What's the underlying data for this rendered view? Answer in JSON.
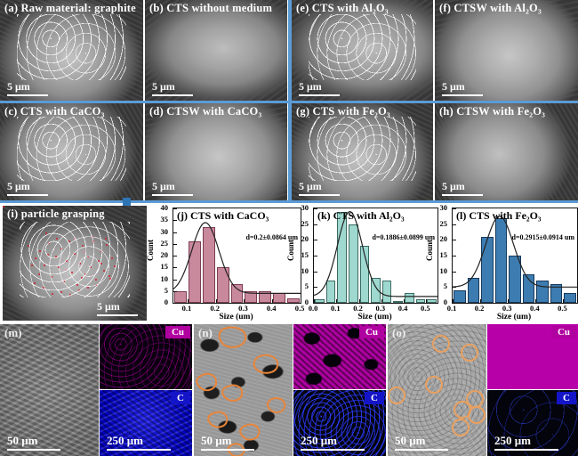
{
  "sem_panels": [
    {
      "label": "(a) Raw material: graphite",
      "scale_bar": "5 μm"
    },
    {
      "label": "(b) CTS without medium",
      "scale_bar": "5 μm"
    },
    {
      "label": "(e) CTS with Al₂O₃",
      "scale_bar": "5 μm"
    },
    {
      "label": "(f) CTSW with Al₂O₃",
      "scale_bar": "5 μm"
    },
    {
      "label": "(c) CTS with CaCO₃",
      "scale_bar": "5 μm"
    },
    {
      "label": "(d) CTSW with CaCO₃",
      "scale_bar": "5 μm"
    },
    {
      "label": "(g) CTS with Fe₂O₃",
      "scale_bar": "5 μm"
    },
    {
      "label": "(h) CTSW with Fe₂O₃",
      "scale_bar": "5 μm"
    }
  ],
  "grasping_panel": {
    "label": "(i) particle grasping",
    "scale_bar": "5 μm"
  },
  "chart_data": [
    {
      "type": "bar",
      "title": "(j) CTS with CaCO₃",
      "annotation": "d=0.2±0.0864 um",
      "xlabel": "Size (um)",
      "ylabel": "Count",
      "xlim": [
        0.05,
        0.5
      ],
      "ylim": [
        0,
        40
      ],
      "ytick_step": 5,
      "xticks": [
        0.1,
        0.2,
        0.3,
        0.4,
        0.5
      ],
      "bin_start": 0.05,
      "bin_width": 0.05,
      "values": [
        5,
        26,
        32,
        15,
        8,
        5,
        5,
        4,
        2
      ],
      "bar_color": "#c9899c",
      "bar_edge": "#7c3c52",
      "fit": {
        "mu": 0.163,
        "sigma": 0.048,
        "peak": 30,
        "baseline": 4
      }
    },
    {
      "type": "bar",
      "title": "(k) CTS with Al₂O₃",
      "annotation": "d=0.1886±0.0899 um",
      "xlabel": "Size (um)",
      "ylabel": "Count",
      "xlim": [
        0.0,
        0.55
      ],
      "ylim": [
        0,
        30
      ],
      "ytick_step": 5,
      "xticks": [
        0.0,
        0.1,
        0.2,
        0.3,
        0.4,
        0.5
      ],
      "bin_start": 0.0,
      "bin_width": 0.05,
      "values": [
        1,
        7,
        29,
        25,
        18,
        8,
        7,
        0,
        3,
        1,
        1
      ],
      "bar_color": "#9ed8cf",
      "bar_edge": "#3a6b62",
      "fit": {
        "mu": 0.16,
        "sigma": 0.055,
        "peak": 27,
        "baseline": 2
      }
    },
    {
      "type": "bar",
      "title": "(l) CTS with Fe₂O₃",
      "annotation": "d=0.2915±0.0914 um",
      "xlabel": "Size (um)",
      "ylabel": "Count",
      "xlim": [
        0.1,
        0.55
      ],
      "ylim": [
        0,
        30
      ],
      "ytick_step": 5,
      "xticks": [
        0.1,
        0.2,
        0.3,
        0.4,
        0.5
      ],
      "bin_start": 0.1,
      "bin_width": 0.05,
      "values": [
        4,
        8,
        21,
        27,
        15,
        9,
        7,
        6,
        3
      ],
      "bar_color": "#3d7cb0",
      "bar_edge": "#16395c",
      "fit": {
        "mu": 0.27,
        "sigma": 0.05,
        "peak": 22.5,
        "baseline": 5
      }
    }
  ],
  "mapping_panels": [
    {
      "label": "(m)",
      "sem_scale_bar": "50 μm",
      "map_scale_bar": "250 μm",
      "cu_label": "Cu",
      "c_label": "C"
    },
    {
      "label": "(n)",
      "sem_scale_bar": "50 μm",
      "map_scale_bar": "250 μm",
      "cu_label": "Cu",
      "c_label": "C"
    },
    {
      "label": "(o)",
      "sem_scale_bar": "50 μm",
      "map_scale_bar": "250 μm",
      "cu_label": "Cu",
      "c_label": "C"
    }
  ],
  "colors": {
    "separator": "#5b9bd5",
    "arrow": "#2e75b6",
    "cu_badge": "#b000a0",
    "c_badge": "#1414c8",
    "grasp_dots": "#d42030",
    "outline_orange": "#e8853a"
  }
}
